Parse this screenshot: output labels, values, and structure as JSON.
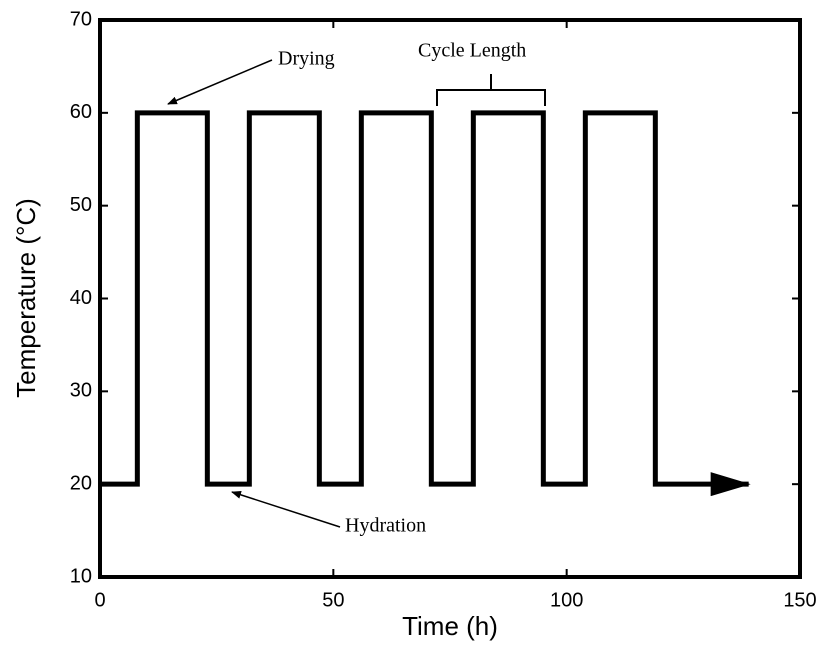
{
  "chart_data": {
    "type": "line",
    "xlabel": "Time (h)",
    "ylabel": "Temperature (°C)",
    "x": [
      0,
      8,
      8,
      23,
      23,
      32,
      32,
      47,
      47,
      56,
      56,
      71,
      71,
      80,
      80,
      95,
      95,
      104,
      104,
      119,
      119,
      139
    ],
    "values": [
      20,
      20,
      60,
      60,
      20,
      20,
      60,
      60,
      20,
      20,
      60,
      60,
      20,
      20,
      60,
      60,
      20,
      20,
      60,
      60,
      20,
      20
    ],
    "color": "#000000",
    "xlim": [
      0,
      150
    ],
    "xticks": [
      0,
      50,
      100,
      150
    ],
    "ylim": [
      10,
      70
    ],
    "yticks": [
      10,
      20,
      30,
      40,
      50,
      60,
      70
    ],
    "grid": false,
    "annotations": [
      "Drying",
      "Hydration",
      "Cycle Length"
    ]
  }
}
